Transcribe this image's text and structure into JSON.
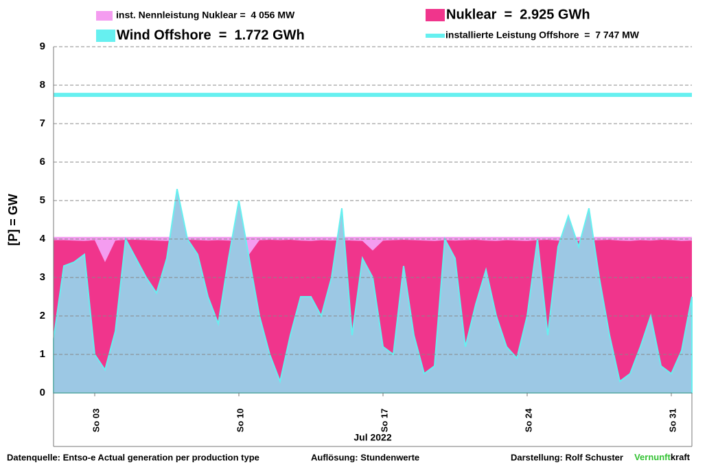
{
  "chart_data": {
    "type": "area",
    "y_label": "[P]  =  GW",
    "x_label": "Jul 2022",
    "xlim": [
      1,
      32
    ],
    "xticks": [
      {
        "value": 3,
        "label": "So 03"
      },
      {
        "value": 10,
        "label": "So 10"
      },
      {
        "value": 17,
        "label": "So 17"
      },
      {
        "value": 24,
        "label": "So 24"
      },
      {
        "value": 31,
        "label": "So 31"
      }
    ],
    "ylim": [
      0,
      9
    ],
    "yticks": [
      0,
      1,
      2,
      3,
      4,
      5,
      6,
      7,
      8,
      9
    ],
    "grid": true,
    "x": [
      1,
      1.5,
      2,
      2.5,
      3,
      3.5,
      4,
      4.5,
      5,
      5.5,
      6,
      6.5,
      7,
      7.5,
      8,
      8.5,
      9,
      9.5,
      10,
      10.5,
      11,
      11.5,
      12,
      12.5,
      13,
      13.5,
      14,
      14.5,
      15,
      15.5,
      16,
      16.5,
      17,
      17.5,
      18,
      18.5,
      19,
      19.5,
      20,
      20.5,
      21,
      21.5,
      22,
      22.5,
      23,
      23.5,
      24,
      24.5,
      25,
      25.5,
      26,
      26.5,
      27,
      27.5,
      28,
      28.5,
      29,
      29.5,
      30,
      30.5,
      31,
      31.5,
      32
    ],
    "reference_lines": [
      {
        "name": "inst. Nennleistung Nuklear =  4 056 MW",
        "value": 4.056,
        "color": "#f49cf0",
        "style": "area"
      },
      {
        "name": "installierte Leistung Offshore  =  7 747 MW",
        "value": 7.747,
        "color": "#66f0f0",
        "style": "line"
      }
    ],
    "series": [
      {
        "name": "Nuklear  =  2.925 GWh",
        "color": "#f0358c",
        "values": [
          3.97,
          3.97,
          3.96,
          3.95,
          3.97,
          3.4,
          3.96,
          3.98,
          3.98,
          3.97,
          3.96,
          3.95,
          3.97,
          3.98,
          3.97,
          3.96,
          3.97,
          3.96,
          3.95,
          3.6,
          3.97,
          3.98,
          3.97,
          3.98,
          3.96,
          3.95,
          3.97,
          3.96,
          3.97,
          3.96,
          3.95,
          3.7,
          3.96,
          3.97,
          3.98,
          3.97,
          3.96,
          3.95,
          3.97,
          3.96,
          3.97,
          3.98,
          3.96,
          3.95,
          3.97,
          3.96,
          3.95,
          3.97,
          3.98,
          3.96,
          3.97,
          3.95,
          3.96,
          3.97,
          3.98,
          3.96,
          3.95,
          3.97,
          3.96,
          3.98,
          3.97,
          3.95,
          3.96
        ]
      },
      {
        "name": "Wind Offshore  =  1.772 GWh",
        "color": "#66f0f0",
        "values": [
          1.4,
          3.3,
          3.4,
          3.6,
          1.0,
          0.6,
          1.6,
          4.0,
          3.5,
          3.0,
          2.6,
          3.5,
          5.3,
          4.0,
          3.6,
          2.5,
          1.8,
          3.5,
          5.0,
          3.5,
          2.0,
          1.0,
          0.3,
          1.5,
          2.5,
          2.5,
          2.0,
          3.0,
          4.8,
          1.5,
          3.5,
          3.0,
          1.2,
          1.0,
          3.3,
          1.5,
          0.5,
          0.7,
          4.0,
          3.5,
          1.2,
          2.3,
          3.2,
          2.0,
          1.2,
          0.9,
          2.0,
          4.0,
          1.5,
          3.8,
          4.6,
          3.8,
          4.8,
          3.0,
          1.5,
          0.3,
          0.5,
          1.2,
          2.0,
          0.7,
          0.5,
          1.1,
          2.5
        ]
      }
    ]
  },
  "footer": {
    "source": "Datenquelle: Entso-e  Actual generation per production type",
    "resolution": "Auflösung: Stundenwerte",
    "author": "Darstellung:  Rolf Schuster",
    "brand_a": "Vernunft",
    "brand_b": "kraft"
  }
}
